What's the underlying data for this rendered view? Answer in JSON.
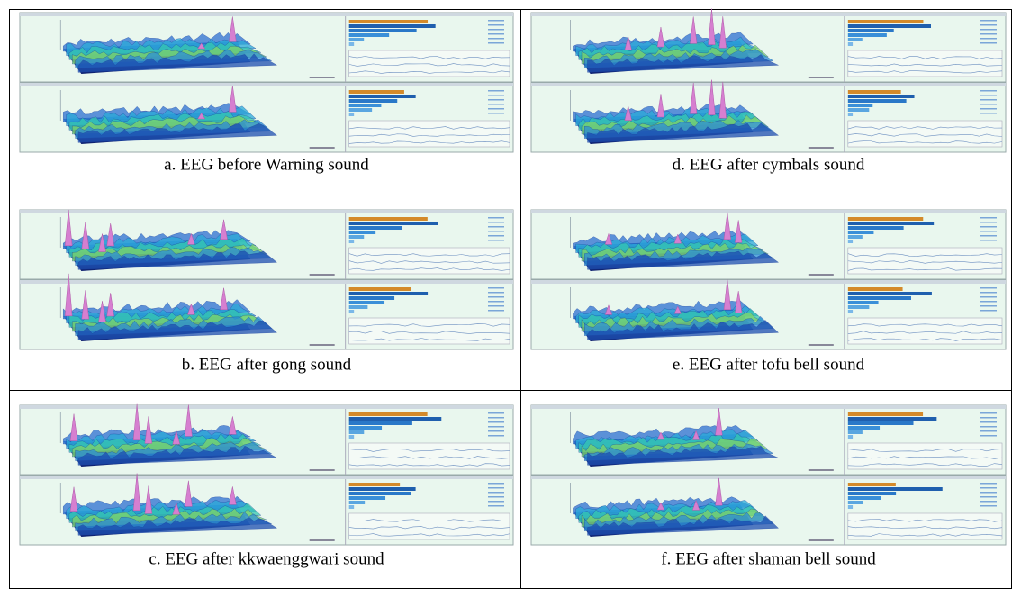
{
  "figure": {
    "rows": [
      [
        "a. EEG before Warning sound",
        "d. EEG after cymbals sound"
      ],
      [
        "b. EEG after gong sound",
        "e. EEG after tofu bell sound"
      ],
      [
        "c. EEG after kkwaenggwari sound",
        "f. EEG after shaman bell sound"
      ]
    ]
  }
}
